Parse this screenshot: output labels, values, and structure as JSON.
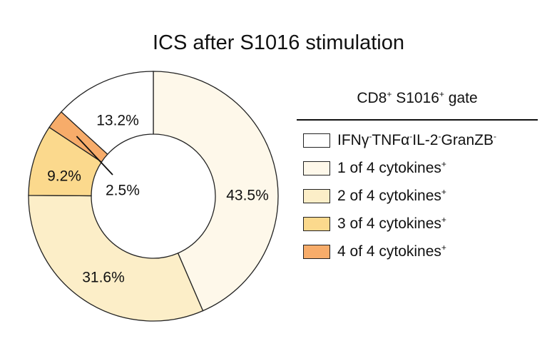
{
  "chart_data": {
    "type": "pie",
    "title": "ICS after S1016 stimulation",
    "legend_title": "CD8⁺ S1016⁺ gate",
    "legend_position": "right",
    "series": [
      {
        "name": "IFNγ⁻TNFα⁻IL-2⁻GranZB⁻",
        "value": 13.2,
        "label": "13.2%",
        "color": "#ffffff"
      },
      {
        "name": "1 of 4 cytokines⁺",
        "value": 43.5,
        "label": "43.5%",
        "color": "#fef8ea"
      },
      {
        "name": "2 of 4 cytokines⁺",
        "value": 31.6,
        "label": "31.6%",
        "color": "#fceec8"
      },
      {
        "name": "3 of 4 cytokines⁺",
        "value": 9.2,
        "label": "9.2%",
        "color": "#fbd98d"
      },
      {
        "name": "4 of 4 cytokines⁺",
        "value": 2.5,
        "label": "2.5%",
        "color": "#f7ac6a"
      }
    ],
    "draw_order": [
      1,
      2,
      3,
      4,
      0
    ]
  },
  "legend_html": [
    "IFNγ<sup>-</sup>TNFα<sup>-</sup>IL-2<sup>-</sup>GranZB<sup>-</sup>",
    "1 of 4 cytokines<sup>+</sup>",
    "2 of 4 cytokines<sup>+</sup>",
    "3 of 4 cytokines<sup>+</sup>",
    "4 of 4 cytokines<sup>+</sup>"
  ],
  "legend_title_html": "CD8<sup>+</sup> S1016<sup>+</sup> gate"
}
